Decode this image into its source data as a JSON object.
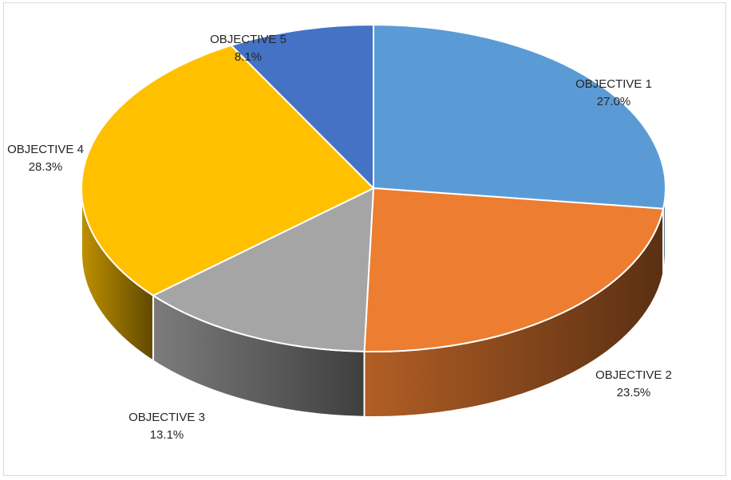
{
  "chart_data": {
    "type": "pie",
    "style": "3d",
    "title": "",
    "slices": [
      {
        "label": "OBJECTIVE 1",
        "value": 27.0,
        "display": "27.0%",
        "color": "#5b9bd5"
      },
      {
        "label": "OBJECTIVE 2",
        "value": 23.5,
        "display": "23.5%",
        "color": "#ed7d31"
      },
      {
        "label": "OBJECTIVE 3",
        "value": 13.1,
        "display": "13.1%",
        "color": "#a5a5a5"
      },
      {
        "label": "OBJECTIVE 4",
        "value": 28.3,
        "display": "28.3%",
        "color": "#ffc000"
      },
      {
        "label": "OBJECTIVE 5",
        "value": 8.1,
        "display": "8.1%",
        "color": "#4472c4"
      }
    ],
    "legend": "none",
    "data_labels": "outside"
  }
}
